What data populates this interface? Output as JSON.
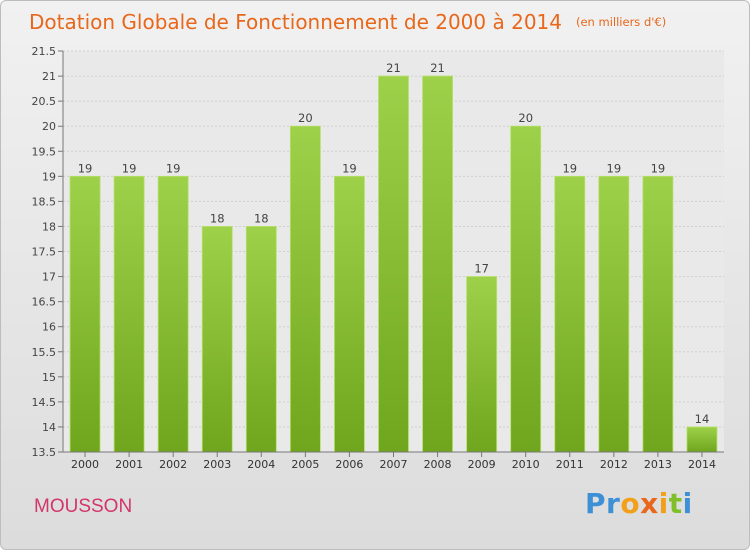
{
  "title": "Dotation Globale de Fonctionnement de 2000 à 2014",
  "unit": "(en milliers d'€)",
  "commune": "MOUSSON",
  "logo": {
    "text": "Proxiti",
    "letters": [
      "P",
      "r",
      "o",
      "x",
      "i",
      "t",
      "i"
    ],
    "colors": [
      "#3d8fd6",
      "#3d8fd6",
      "#f2a01b",
      "#e8671a",
      "#f2a01b",
      "#7fbf2a",
      "#3d8fd6"
    ]
  },
  "colors": {
    "bar_light": "#9ed14a",
    "bar_dark": "#6fa61d",
    "title": "#e8671a",
    "commune": "#d3366a"
  },
  "chart_data": {
    "type": "bar",
    "categories": [
      "2000",
      "2001",
      "2002",
      "2003",
      "2004",
      "2005",
      "2006",
      "2007",
      "2008",
      "2009",
      "2010",
      "2011",
      "2012",
      "2013",
      "2014"
    ],
    "values": [
      19,
      19,
      19,
      18,
      18,
      20,
      19,
      21,
      21,
      17,
      20,
      19,
      19,
      19,
      14
    ],
    "ylim": [
      13.5,
      21.5
    ],
    "yticks": [
      "13.5",
      "14",
      "14.5",
      "15",
      "15.5",
      "16",
      "16.5",
      "17",
      "17.5",
      "18",
      "18.5",
      "19",
      "19.5",
      "20",
      "20.5",
      "21",
      "21.5"
    ],
    "title": "Dotation Globale de Fonctionnement de 2000 à 2014",
    "xlabel": "",
    "ylabel": "",
    "grid": true
  }
}
